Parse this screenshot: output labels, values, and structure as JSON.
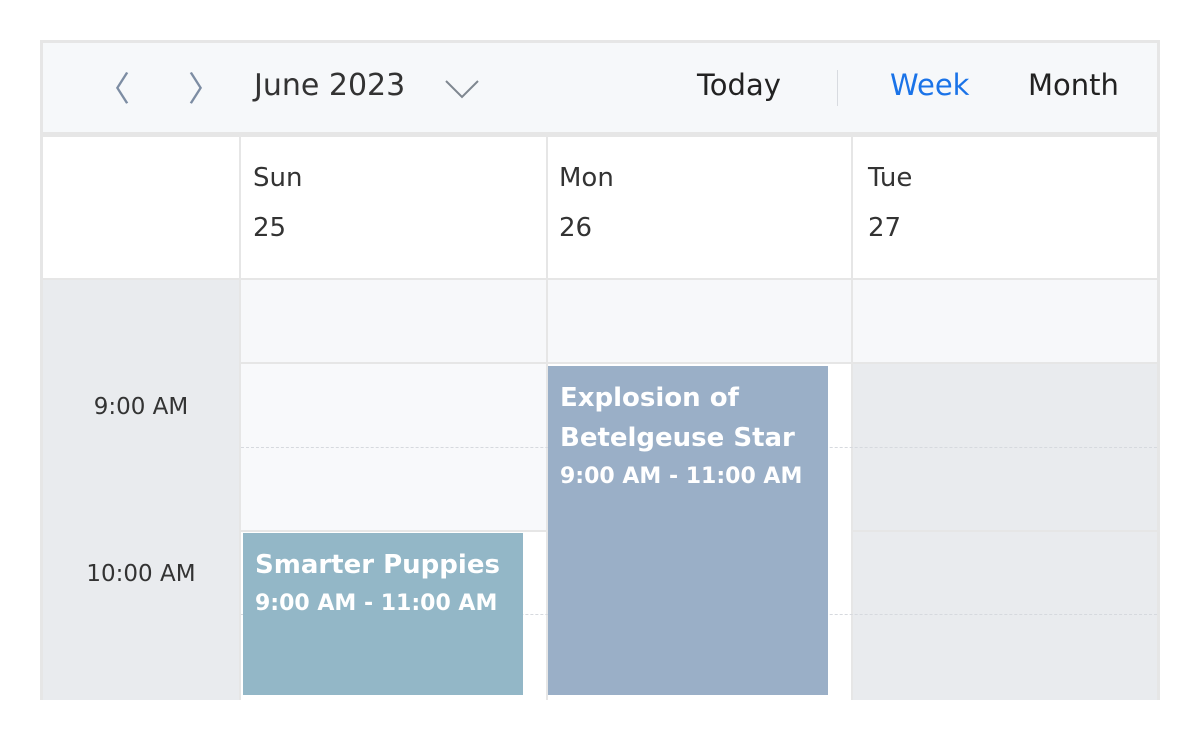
{
  "toolbar": {
    "prev_icon": "chevron-left-icon",
    "next_icon": "chevron-right-icon",
    "title": "June 2023",
    "dropdown_icon": "chevron-down-icon",
    "today": "Today",
    "week": "Week",
    "month": "Month",
    "active_view": "Week",
    "accent": "#1a73e8"
  },
  "days": [
    {
      "name": "Sun",
      "num": "25"
    },
    {
      "name": "Mon",
      "num": "26"
    },
    {
      "name": "Tue",
      "num": "27"
    }
  ],
  "times": [
    "9:00 AM",
    "10:00 AM"
  ],
  "events": [
    {
      "title": "Smarter Puppies",
      "time": "9:00 AM - 11:00 AM",
      "day": "Sun",
      "color": "#93b7c7"
    },
    {
      "title": "Explosion of Betelgeuse Star",
      "time": "9:00 AM - 11:00 AM",
      "day": "Mon",
      "color": "#9aafc7"
    }
  ]
}
